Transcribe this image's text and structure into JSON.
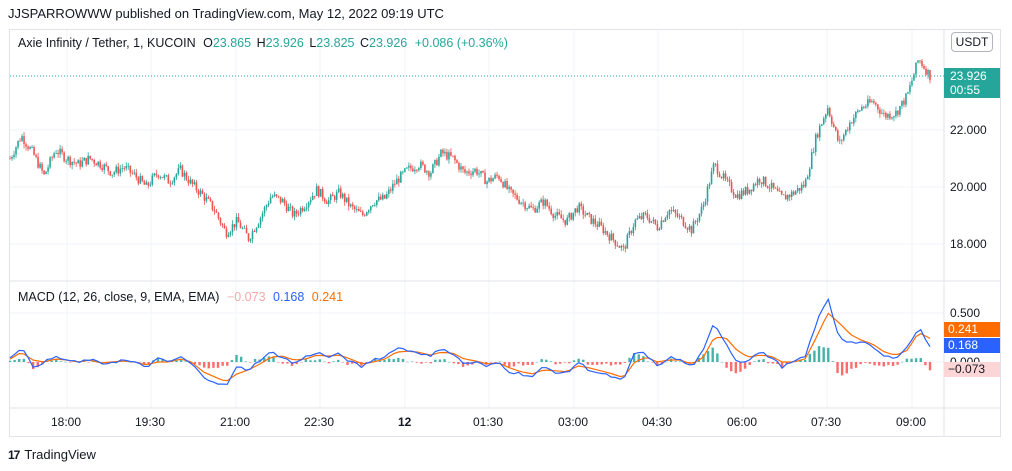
{
  "header": {
    "published": "JJSPARROWWW published on TradingView.com, May 12, 2022 09:19 UTC"
  },
  "symbol": {
    "name": "Axie Infinity / Tether, 1, KUCOIN",
    "o_label": "O",
    "o": "23.865",
    "h_label": "H",
    "h": "23.926",
    "l_label": "L",
    "l": "23.825",
    "c_label": "C",
    "c": "23.926",
    "change": "+0.086 (+0.36%)"
  },
  "currency_button": "USDT",
  "last_price": {
    "value": "23.926",
    "countdown": "00:55"
  },
  "price_axis": [
    "22.000",
    "20.000",
    "18.000"
  ],
  "macd": {
    "label": "MACD (12, 26, close, 9, EMA, EMA)",
    "hist": "−0.073",
    "macd": "0.168",
    "signal": "0.241",
    "axis": [
      "0.500",
      "0.000"
    ],
    "badge_signal": "0.241",
    "badge_macd": "0.168",
    "badge_hist": "−0.073"
  },
  "time_axis": [
    "18:00",
    "19:30",
    "21:00",
    "22:30",
    "12",
    "01:30",
    "03:00",
    "04:30",
    "06:00",
    "07:30",
    "09:00"
  ],
  "footer": {
    "brand": "TradingView"
  },
  "colors": {
    "up": "#26a69a",
    "down": "#ef5350",
    "macd": "#2962ff",
    "signal": "#ff6d00",
    "hist_pos": "#26a69a",
    "hist_neg": "#ff5252"
  },
  "chart_data": {
    "type": "candlestick",
    "price_path": [
      21.0,
      21.8,
      21.2,
      20.4,
      21.3,
      21.0,
      20.8,
      21.0,
      20.8,
      20.5,
      20.7,
      20.4,
      20.0,
      20.5,
      20.2,
      20.6,
      20.1,
      19.7,
      19.2,
      18.4,
      18.8,
      18.2,
      18.9,
      19.7,
      19.5,
      19.0,
      19.4,
      19.9,
      19.5,
      19.8,
      19.3,
      19.0,
      19.5,
      19.6,
      20.2,
      20.6,
      20.8,
      20.5,
      21.2,
      21.0,
      20.5,
      20.6,
      20.2,
      20.4,
      19.8,
      19.5,
      19.2,
      19.5,
      19.0,
      18.8,
      19.3,
      18.9,
      18.6,
      18.2,
      17.8,
      18.8,
      19.0,
      18.6,
      19.2,
      18.9,
      18.5,
      19.3,
      20.8,
      20.2,
      19.7,
      19.9,
      20.3,
      20.0,
      19.6,
      19.8,
      20.1,
      21.8,
      22.8,
      21.5,
      22.3,
      22.8,
      23.0,
      22.5,
      22.6,
      23.2,
      24.5,
      23.9
    ],
    "macd_path": [
      0.05,
      0.15,
      -0.05,
      0.0,
      0.05,
      0.02,
      -0.01,
      0.03,
      -0.02,
      0.0,
      0.02,
      -0.01,
      -0.05,
      0.03,
      0.0,
      0.05,
      -0.02,
      -0.15,
      -0.2,
      -0.25,
      -0.05,
      -0.08,
      0.02,
      0.1,
      0.05,
      -0.02,
      0.05,
      0.1,
      0.05,
      0.08,
      0.0,
      -0.05,
      0.03,
      0.05,
      0.15,
      0.12,
      0.1,
      0.05,
      0.15,
      0.08,
      -0.02,
      0.0,
      -0.05,
      0.0,
      -0.1,
      -0.12,
      -0.15,
      -0.05,
      -0.1,
      -0.12,
      0.0,
      -0.08,
      -0.12,
      -0.15,
      -0.2,
      0.1,
      0.08,
      -0.05,
      0.05,
      0.02,
      -0.05,
      0.1,
      0.4,
      0.2,
      0.0,
      0.02,
      0.1,
      0.05,
      -0.05,
      0.0,
      0.05,
      0.4,
      0.65,
      0.25,
      0.2,
      0.2,
      0.15,
      0.05,
      0.05,
      0.15,
      0.35,
      0.168
    ],
    "signal_path": [
      0.03,
      0.1,
      0.02,
      0.0,
      0.03,
      0.02,
      0.0,
      0.02,
      -0.01,
      0.0,
      0.01,
      0.0,
      -0.03,
      0.0,
      0.0,
      0.03,
      0.0,
      -0.1,
      -0.15,
      -0.2,
      -0.12,
      -0.08,
      -0.02,
      0.05,
      0.06,
      0.02,
      0.03,
      0.07,
      0.06,
      0.07,
      0.03,
      -0.02,
      0.0,
      0.03,
      0.1,
      0.11,
      0.1,
      0.07,
      0.1,
      0.09,
      0.03,
      0.01,
      -0.02,
      -0.01,
      -0.06,
      -0.1,
      -0.12,
      -0.08,
      -0.09,
      -0.1,
      -0.04,
      -0.06,
      -0.09,
      -0.12,
      -0.16,
      0.0,
      0.05,
      0.0,
      0.02,
      0.02,
      -0.02,
      0.04,
      0.25,
      0.25,
      0.12,
      0.05,
      0.07,
      0.06,
      0.0,
      0.0,
      0.03,
      0.25,
      0.5,
      0.4,
      0.28,
      0.22,
      0.18,
      0.1,
      0.07,
      0.12,
      0.3,
      0.241
    ]
  }
}
